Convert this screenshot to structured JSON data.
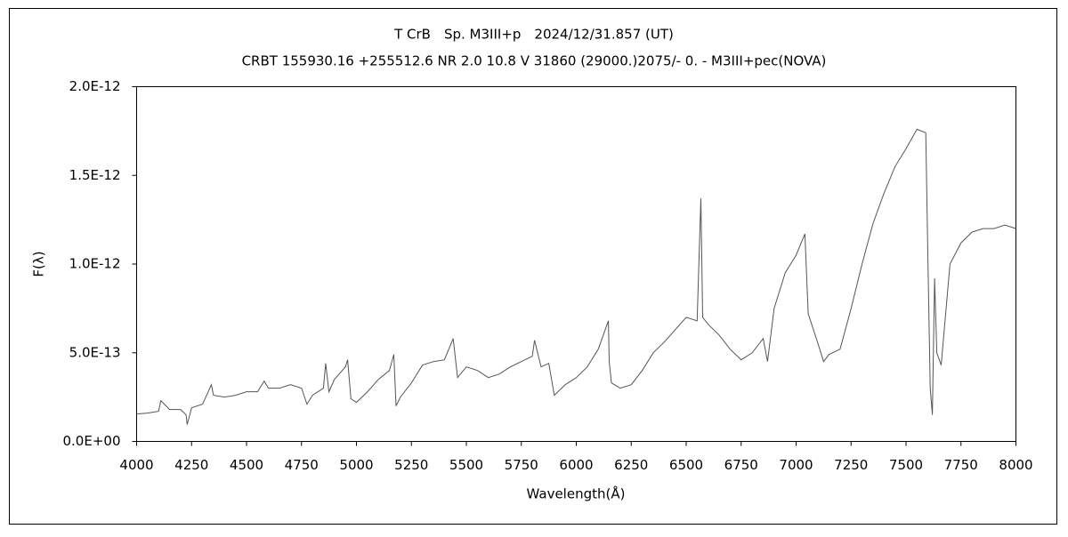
{
  "chart_data": {
    "type": "line",
    "title": "T CrB　Sp. M3III+p　2024/12/31.857 (UT)",
    "subtitle": "CRBT 155930.16 +255512.6 NR 2.0 10.8 V 31860 (29000.)2075/-  0. - M3III+pec(NOVA)",
    "x_label": "Wavelength(Å)",
    "y_label": "F(λ)",
    "color": "#555555",
    "xlim": [
      4000,
      8000
    ],
    "xticks": [
      4000,
      4250,
      4500,
      4750,
      5000,
      5250,
      5500,
      5750,
      6000,
      6250,
      6500,
      6750,
      7000,
      7250,
      7500,
      7750,
      8000
    ],
    "ylim": [
      0,
      2e-12
    ],
    "yticks": [
      {
        "value": 0,
        "label": "0.0E+00"
      },
      {
        "value": 5e-13,
        "label": "5.0E-13"
      },
      {
        "value": 1e-12,
        "label": "1.0E-12"
      },
      {
        "value": 1.5e-12,
        "label": "1.5E-12"
      },
      {
        "value": 2e-12,
        "label": "2.0E-12"
      }
    ],
    "x": [
      4000,
      4050,
      4100,
      4110,
      4150,
      4200,
      4225,
      4230,
      4250,
      4300,
      4340,
      4350,
      4400,
      4450,
      4500,
      4550,
      4580,
      4600,
      4650,
      4700,
      4750,
      4775,
      4800,
      4850,
      4860,
      4875,
      4900,
      4950,
      4960,
      4975,
      5000,
      5050,
      5100,
      5150,
      5170,
      5180,
      5200,
      5250,
      5300,
      5350,
      5400,
      5440,
      5460,
      5500,
      5550,
      5600,
      5650,
      5700,
      5750,
      5800,
      5810,
      5840,
      5875,
      5900,
      5950,
      6000,
      6050,
      6100,
      6146,
      6150,
      6160,
      6200,
      6250,
      6300,
      6350,
      6400,
      6450,
      6500,
      6550,
      6567,
      6575,
      6600,
      6650,
      6700,
      6750,
      6800,
      6850,
      6870,
      6900,
      6950,
      7000,
      7040,
      7055,
      7100,
      7125,
      7150,
      7200,
      7250,
      7300,
      7350,
      7400,
      7450,
      7500,
      7550,
      7590,
      7600,
      7610,
      7620,
      7630,
      7640,
      7660,
      7700,
      7750,
      7800,
      7850,
      7900,
      7950,
      8000
    ],
    "values": [
      1.55e-13,
      1.6e-13,
      1.7e-13,
      2.3e-13,
      1.8e-13,
      1.8e-13,
      1.5e-13,
      9.5e-14,
      1.9e-13,
      2.1e-13,
      3.2e-13,
      2.6e-13,
      2.5e-13,
      2.6e-13,
      2.8e-13,
      2.8e-13,
      3.4e-13,
      3e-13,
      3e-13,
      3.2e-13,
      3e-13,
      2.1e-13,
      2.6e-13,
      3e-13,
      4.4e-13,
      2.8e-13,
      3.5e-13,
      4.2e-13,
      4.6e-13,
      2.4e-13,
      2.2e-13,
      2.8e-13,
      3.5e-13,
      4e-13,
      4.9e-13,
      2e-13,
      2.5e-13,
      3.3e-13,
      4.3e-13,
      4.5e-13,
      4.6e-13,
      5.8e-13,
      3.6e-13,
      4.2e-13,
      4e-13,
      3.6e-13,
      3.8e-13,
      4.2e-13,
      4.5e-13,
      4.8e-13,
      5.7e-13,
      4.2e-13,
      4.4e-13,
      2.6e-13,
      3.2e-13,
      3.6e-13,
      4.2e-13,
      5.2e-13,
      6.8e-13,
      4.5e-13,
      3.3e-13,
      3e-13,
      3.2e-13,
      4e-13,
      5e-13,
      5.6e-13,
      6.3e-13,
      7e-13,
      6.8e-13,
      1.37e-12,
      7e-13,
      6.6e-13,
      6e-13,
      5.2e-13,
      4.6e-13,
      5e-13,
      5.8e-13,
      4.5e-13,
      7.5e-13,
      9.5e-13,
      1.05e-12,
      1.17e-12,
      7.2e-13,
      5.5e-13,
      4.5e-13,
      4.9e-13,
      5.2e-13,
      7.5e-13,
      1e-12,
      1.23e-12,
      1.4e-12,
      1.55e-12,
      1.65e-12,
      1.76e-12,
      1.74e-12,
      1e-12,
      3e-13,
      1.5e-13,
      9.2e-13,
      5e-13,
      4.3e-13,
      1e-12,
      1.12e-12,
      1.18e-12,
      1.2e-12,
      1.2e-12,
      1.22e-12,
      1.2e-12
    ]
  }
}
